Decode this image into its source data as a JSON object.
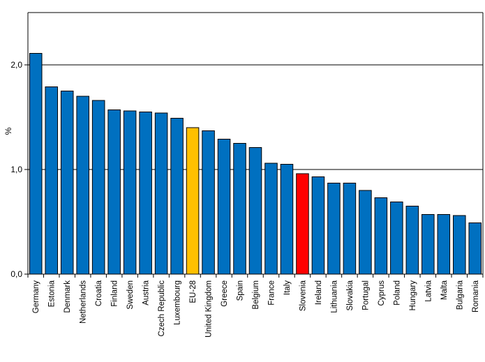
{
  "chart_data": {
    "type": "bar",
    "title": "",
    "xlabel": "",
    "ylabel": "%",
    "ylim": [
      0,
      2.5
    ],
    "yticks": [
      0,
      1,
      2
    ],
    "ytick_labels": [
      "0,0",
      "1,0",
      "2,0"
    ],
    "grid": true,
    "categories": [
      "Germany",
      "Estonia",
      "Denmark",
      "Netherlands",
      "Croatia",
      "Finland",
      "Sweden",
      "Austria",
      "Czech Republic",
      "Luxembourg",
      "EU-28",
      "United Kingdom",
      "Greece",
      "Spain",
      "Belgium",
      "France",
      "Italy",
      "Slovenia",
      "Ireland",
      "Lithuania",
      "Slovakia",
      "Portugal",
      "Cyprus",
      "Poland",
      "Hungary",
      "Latvia",
      "Malta",
      "Bulgaria",
      "Romania"
    ],
    "values": [
      2.11,
      1.79,
      1.75,
      1.7,
      1.66,
      1.57,
      1.56,
      1.55,
      1.54,
      1.49,
      1.4,
      1.37,
      1.29,
      1.25,
      1.21,
      1.06,
      1.05,
      0.96,
      0.93,
      0.87,
      0.87,
      0.8,
      0.73,
      0.69,
      0.65,
      0.57,
      0.57,
      0.56,
      0.49
    ],
    "colors": {
      "default": "#0070C0",
      "EU-28": "#FFC000",
      "Slovenia": "#FF0000",
      "gridline": "#000000",
      "bar_outline": "#000000"
    }
  }
}
